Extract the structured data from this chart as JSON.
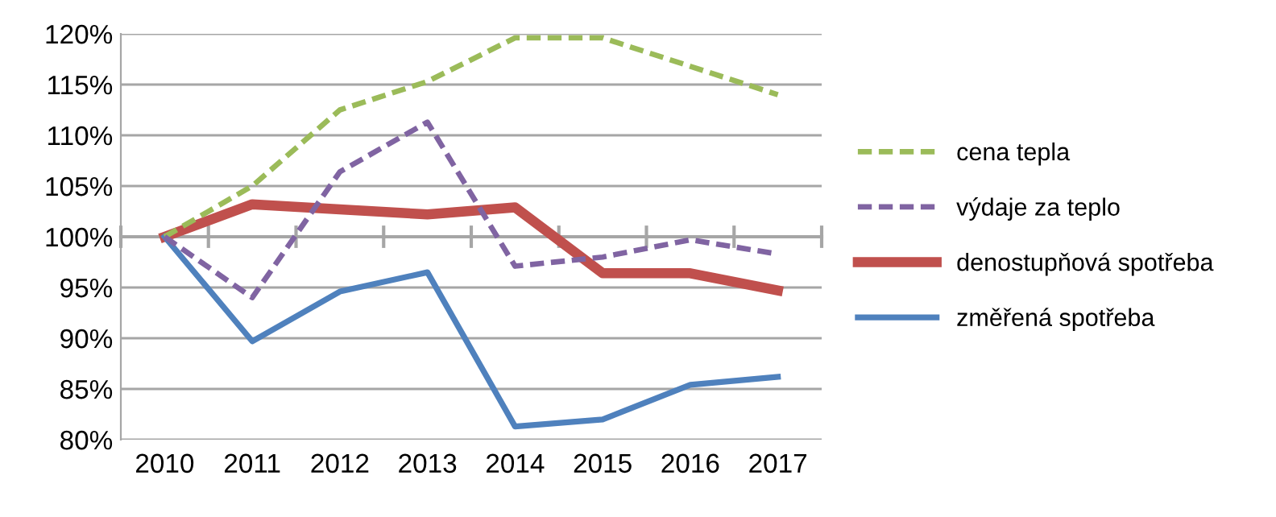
{
  "chart_data": {
    "type": "line",
    "categories": [
      "2010",
      "2011",
      "2012",
      "2013",
      "2014",
      "2015",
      "2016",
      "2017"
    ],
    "series": [
      {
        "name": "cena tepla",
        "color": "#9bbb59",
        "line_style": "dashed",
        "values": [
          100,
          105,
          112.5,
          115.3,
          119.6,
          119.6,
          116.8,
          114
        ]
      },
      {
        "name": "výdaje za teplo",
        "color": "#8064a2",
        "line_style": "dashed",
        "values": [
          100,
          94,
          106.4,
          111.3,
          97.1,
          98.0,
          99.7,
          98.3
        ]
      },
      {
        "name": "denostupňová spotřeba",
        "color": "#c0504d",
        "line_style": "solid",
        "values": [
          100,
          103.2,
          102.7,
          102.2,
          102.9,
          96.4,
          96.4,
          94.7
        ]
      },
      {
        "name": "změřená spotřeba",
        "color": "#4f81bd",
        "line_style": "solid",
        "values": [
          100,
          89.7,
          94.6,
          96.5,
          81.3,
          82.0,
          85.4,
          86.2
        ]
      }
    ],
    "ylim": [
      80,
      120
    ],
    "yticks": [
      {
        "value": 80,
        "label": "80%"
      },
      {
        "value": 85,
        "label": "85%"
      },
      {
        "value": 90,
        "label": "90%"
      },
      {
        "value": 95,
        "label": "95%"
      },
      {
        "value": 100,
        "label": "100%"
      },
      {
        "value": 105,
        "label": "105%"
      },
      {
        "value": 110,
        "label": "110%"
      },
      {
        "value": 115,
        "label": "115%"
      },
      {
        "value": 120,
        "label": "120%"
      }
    ],
    "ref_lines": [
      {
        "axis": "y",
        "value": 100,
        "color": "#a6a6a6"
      }
    ],
    "grid": "y",
    "legend": "right",
    "marker": "none"
  }
}
